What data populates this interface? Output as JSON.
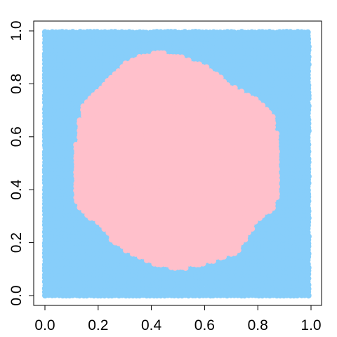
{
  "chart_data": {
    "type": "scatter",
    "title": "",
    "xlabel": "",
    "ylabel": "",
    "xlim": [
      0,
      1
    ],
    "ylim": [
      0,
      1
    ],
    "x_ticks": [
      "0.0",
      "0.2",
      "0.4",
      "0.6",
      "0.8",
      "1.0"
    ],
    "y_ticks": [
      "0.0",
      "0.2",
      "0.4",
      "0.6",
      "0.8",
      "1.0"
    ],
    "grid": false,
    "legend": "none",
    "series": [
      {
        "color": "#87CEFA",
        "region": "background: points covering the full unit square",
        "x_range": [
          0,
          1
        ],
        "y_range": [
          0,
          1
        ]
      },
      {
        "color": "#FFC0CB",
        "region": "central blob: points within the irregular central region",
        "outline": [
          [
            0.14,
            0.72
          ],
          [
            0.2,
            0.78
          ],
          [
            0.28,
            0.86
          ],
          [
            0.34,
            0.9
          ],
          [
            0.42,
            0.92
          ],
          [
            0.5,
            0.91
          ],
          [
            0.62,
            0.86
          ],
          [
            0.7,
            0.79
          ],
          [
            0.8,
            0.74
          ],
          [
            0.86,
            0.68
          ],
          [
            0.88,
            0.56
          ],
          [
            0.88,
            0.4
          ],
          [
            0.86,
            0.33
          ],
          [
            0.8,
            0.28
          ],
          [
            0.76,
            0.22
          ],
          [
            0.72,
            0.16
          ],
          [
            0.6,
            0.12
          ],
          [
            0.5,
            0.1
          ],
          [
            0.4,
            0.12
          ],
          [
            0.32,
            0.16
          ],
          [
            0.26,
            0.2
          ],
          [
            0.2,
            0.27
          ],
          [
            0.12,
            0.33
          ],
          [
            0.11,
            0.45
          ],
          [
            0.12,
            0.6
          ]
        ]
      }
    ]
  }
}
